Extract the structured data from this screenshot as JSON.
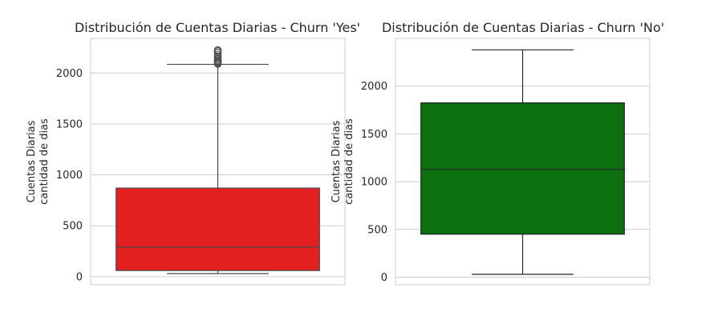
{
  "chart_data": [
    {
      "type": "box",
      "title": "Distribución de Cuentas Diarias - Churn 'Yes'",
      "ylabel_lines": [
        "Cuentas Diarias",
        "cantidad de dias"
      ],
      "ylim": [
        -80,
        2340
      ],
      "yticks": [
        0,
        500,
        1000,
        1500,
        2000
      ],
      "grid": true,
      "color": "#e41f1f",
      "line_color": "#4a4a4a",
      "box": {
        "whislo": 30,
        "q1": 60,
        "med": 290,
        "q3": 870,
        "whishi": 2085
      },
      "fliers": [
        2090,
        2100,
        2110,
        2125,
        2140,
        2160,
        2180,
        2200,
        2215,
        2225
      ]
    },
    {
      "type": "box",
      "title": "Distribución de Cuentas Diarias - Churn 'No'",
      "ylabel_lines": [
        "Cuentas Diarias",
        "cantidad de dias"
      ],
      "ylim": [
        -80,
        2500
      ],
      "yticks": [
        0,
        500,
        1000,
        1500,
        2000
      ],
      "grid": true,
      "color": "#0d7010",
      "line_color": "#262626",
      "box": {
        "whislo": 30,
        "q1": 450,
        "med": 1130,
        "q3": 1825,
        "whishi": 2380
      },
      "fliers": []
    }
  ]
}
